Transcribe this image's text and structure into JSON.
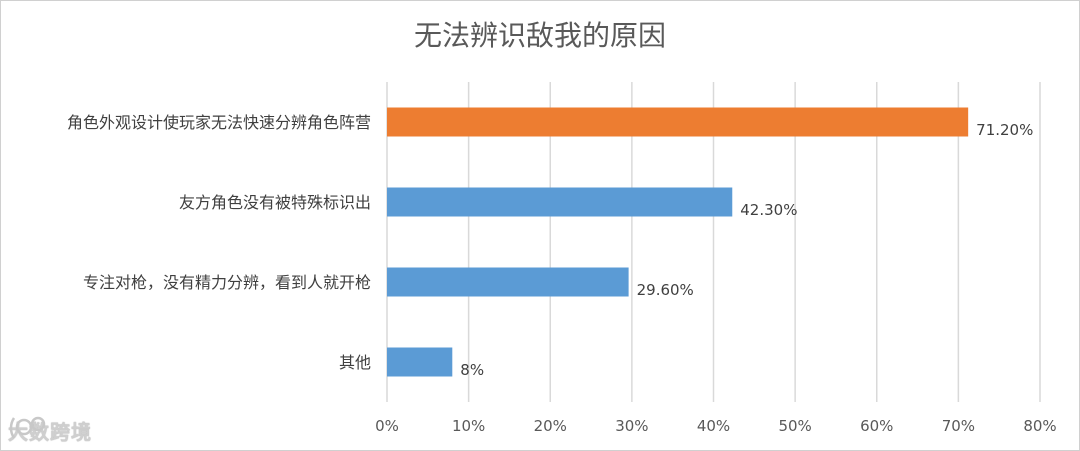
{
  "chart_data": {
    "type": "bar",
    "orientation": "horizontal",
    "title": "无法辨识敌我的原因",
    "categories": [
      "角色外观设计使玩家无法快速分辨角色阵营",
      "友方角色没有被特殊标识出",
      "专注对枪，没有精力分辨，看到人就开枪",
      "其他"
    ],
    "values": [
      71.2,
      42.3,
      29.6,
      8
    ],
    "value_labels": [
      "71.20%",
      "42.30%",
      "29.60%",
      "8%"
    ],
    "bar_colors": [
      "#ED7D31",
      "#5B9BD5",
      "#5B9BD5",
      "#5B9BD5"
    ],
    "xlim": [
      0,
      80
    ],
    "xticks": [
      0,
      10,
      20,
      30,
      40,
      50,
      60,
      70,
      80
    ],
    "xtick_labels": [
      "0%",
      "10%",
      "20%",
      "30%",
      "40%",
      "50%",
      "60%",
      "70%",
      "80%"
    ],
    "grid": true,
    "legend": "none"
  },
  "watermark": {
    "text": "大数跨境"
  }
}
